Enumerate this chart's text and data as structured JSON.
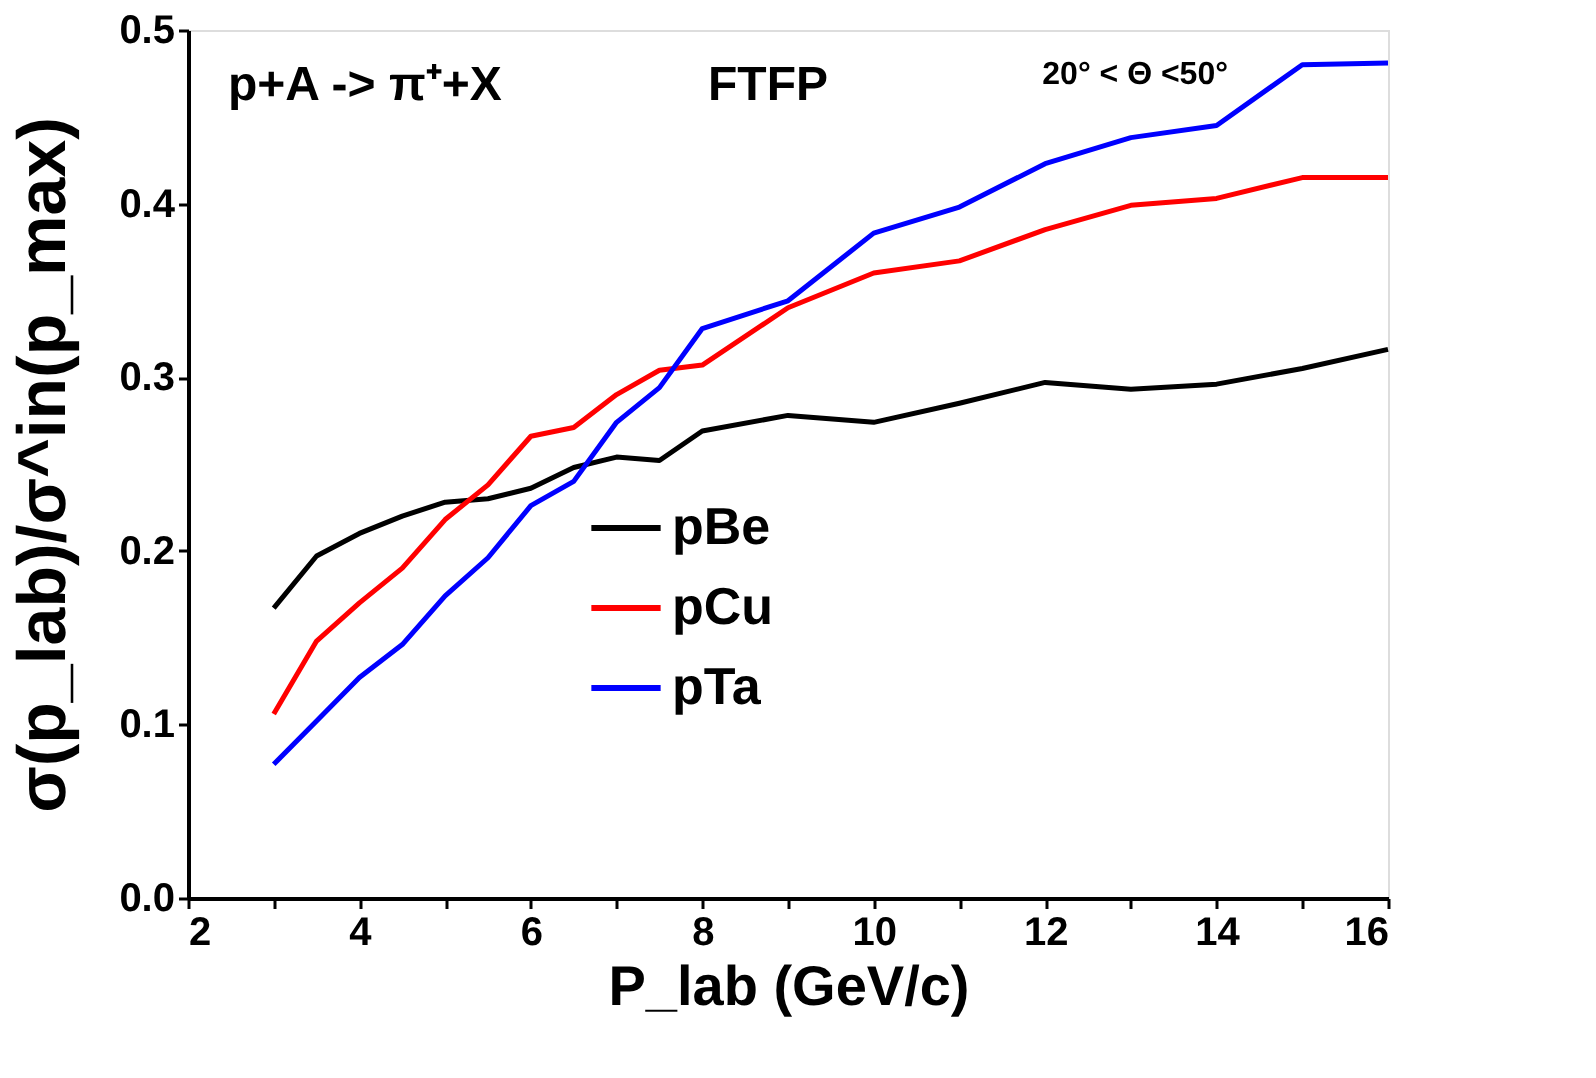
{
  "chart_data": {
    "type": "line",
    "xlabel": "P_lab (GeV/c)",
    "ylabel": "σ(p_lab)/σ^in(p_max)",
    "annotations": [
      "p+A -> π⁺+X",
      "FTFP",
      "20° < Θ <50°"
    ],
    "x": [
      3,
      3.5,
      4,
      4.5,
      5,
      5.5,
      6,
      6.5,
      7,
      7.5,
      8,
      9,
      10,
      11,
      12,
      13,
      14,
      15,
      16
    ],
    "series": [
      {
        "name": "pBe",
        "color": "#000000",
        "values": [
          0.167,
          0.197,
          0.21,
          0.22,
          0.228,
          0.23,
          0.236,
          0.248,
          0.254,
          0.252,
          0.269,
          0.278,
          0.274,
          0.285,
          0.297,
          0.293,
          0.296,
          0.305,
          0.316
        ]
      },
      {
        "name": "pCu",
        "color": "#ff0000",
        "values": [
          0.106,
          0.148,
          0.17,
          0.19,
          0.218,
          0.238,
          0.266,
          0.271,
          0.29,
          0.304,
          0.307,
          0.34,
          0.36,
          0.367,
          0.385,
          0.399,
          0.403,
          0.415,
          0.415
        ]
      },
      {
        "name": "pTa",
        "color": "#0000ff",
        "values": [
          0.077,
          0.102,
          0.127,
          0.146,
          0.174,
          0.196,
          0.226,
          0.24,
          0.274,
          0.294,
          0.328,
          0.344,
          0.383,
          0.398,
          0.423,
          0.438,
          0.445,
          0.48,
          0.481
        ]
      }
    ],
    "xlim": [
      2,
      16
    ],
    "xticks": [
      2,
      {
        "value": 3,
        "label": null
      },
      4,
      {
        "value": 5,
        "label": null
      },
      6,
      {
        "value": 7,
        "label": null
      },
      8,
      {
        "value": 9,
        "label": null
      },
      10,
      {
        "value": 11,
        "label": null
      },
      12,
      {
        "value": 13,
        "label": null
      },
      14,
      {
        "value": 15,
        "label": null
      },
      16
    ],
    "ylim": [
      0,
      0.5
    ],
    "yticks": [
      {
        "value": 0,
        "label": "0.0"
      },
      0.1,
      0.2,
      0.3,
      0.4,
      0.5
    ],
    "grid": false,
    "legend": "bottom left",
    "line_style": "solid",
    "marker": "none"
  }
}
